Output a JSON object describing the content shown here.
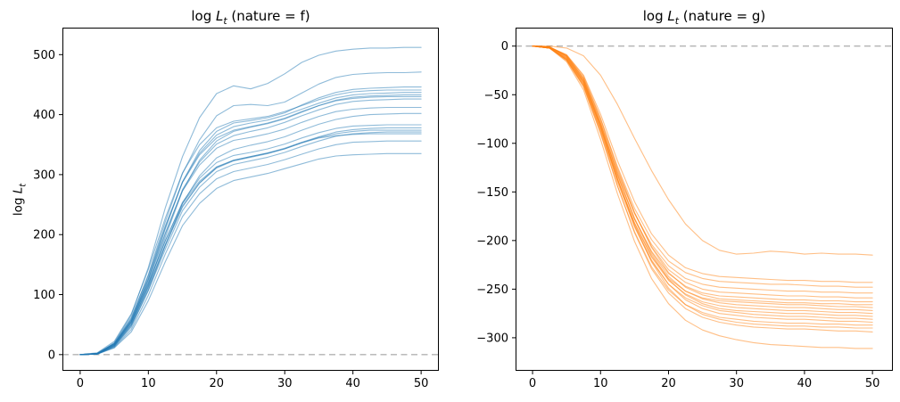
{
  "figure": {
    "background": "#ffffff"
  },
  "chart_data": [
    {
      "type": "line",
      "title": "log L_t (nature = f)",
      "title_parts": {
        "pre": "log ",
        "var": "L",
        "sub": "t",
        "rest": " (nature = f)"
      },
      "ylabel": "log L_t",
      "ylabel_parts": {
        "pre": "log ",
        "var": "L",
        "sub": "t"
      },
      "line_color": "#1f77b4",
      "line_alpha": 0.5,
      "zero_line": {
        "y": 0,
        "color": "#b3b3b3",
        "dash": "7 4.5",
        "width": 1.4
      },
      "grid": false,
      "legend": false,
      "xlim": [
        -2.6,
        52.6
      ],
      "ylim": [
        -27,
        545
      ],
      "xticks": [
        {
          "v": 0,
          "label": "0"
        },
        {
          "v": 10,
          "label": "10"
        },
        {
          "v": 20,
          "label": "20"
        },
        {
          "v": 30,
          "label": "30"
        },
        {
          "v": 40,
          "label": "40"
        },
        {
          "v": 50,
          "label": "50"
        }
      ],
      "yticks": [
        {
          "v": 0,
          "label": "0"
        },
        {
          "v": 100,
          "label": "100"
        },
        {
          "v": 200,
          "label": "200"
        },
        {
          "v": 300,
          "label": "300"
        },
        {
          "v": 400,
          "label": "400"
        },
        {
          "v": 500,
          "label": "500"
        }
      ],
      "x": [
        0,
        2.5,
        5,
        7.5,
        10,
        12.5,
        15,
        17.5,
        20,
        22.5,
        25,
        27.5,
        30,
        32.5,
        35,
        37.5,
        40,
        42.5,
        45,
        47.5,
        50
      ],
      "series": [
        [
          0,
          1,
          20,
          66,
          145,
          245,
          330,
          395,
          435,
          448,
          443,
          452,
          468,
          487,
          499,
          506,
          509,
          511,
          511,
          512,
          512
        ],
        [
          0,
          2,
          18,
          60,
          133,
          222,
          302,
          358,
          398,
          415,
          417,
          415,
          421,
          436,
          451,
          462,
          467,
          469,
          470,
          470,
          471
        ],
        [
          0,
          1,
          15,
          55,
          125,
          210,
          288,
          340,
          372,
          386,
          390,
          395,
          403,
          416,
          428,
          437,
          442,
          444,
          445,
          446,
          446
        ],
        [
          0,
          3,
          22,
          68,
          142,
          228,
          303,
          350,
          378,
          389,
          393,
          397,
          405,
          415,
          425,
          433,
          438,
          440,
          441,
          441,
          441
        ],
        [
          0,
          2,
          17,
          58,
          128,
          212,
          288,
          336,
          366,
          380,
          386,
          391,
          399,
          409,
          419,
          428,
          433,
          435,
          436,
          437,
          437
        ],
        [
          0,
          1,
          14,
          50,
          115,
          196,
          273,
          324,
          356,
          372,
          379,
          385,
          393,
          404,
          415,
          424,
          429,
          431,
          432,
          433,
          433
        ],
        [
          0,
          2,
          19,
          62,
          132,
          215,
          287,
          333,
          361,
          374,
          380,
          386,
          394,
          405,
          415,
          423,
          427,
          429,
          430,
          430,
          430
        ],
        [
          0,
          1,
          16,
          54,
          121,
          201,
          275,
          321,
          351,
          365,
          372,
          378,
          387,
          398,
          408,
          417,
          422,
          424,
          425,
          426,
          426
        ],
        [
          0,
          2,
          18,
          58,
          125,
          203,
          273,
          316,
          344,
          357,
          362,
          368,
          376,
          387,
          397,
          405,
          409,
          411,
          412,
          412,
          412
        ],
        [
          0,
          1,
          13,
          46,
          107,
          182,
          252,
          298,
          328,
          342,
          349,
          355,
          363,
          374,
          384,
          392,
          397,
          400,
          401,
          402,
          402
        ],
        [
          0,
          2,
          17,
          54,
          117,
          190,
          254,
          294,
          320,
          332,
          337,
          343,
          351,
          361,
          370,
          377,
          381,
          382,
          383,
          383,
          383
        ],
        [
          0,
          1,
          15,
          50,
          111,
          182,
          246,
          286,
          312,
          324,
          330,
          336,
          344,
          354,
          363,
          371,
          375,
          377,
          378,
          378,
          378
        ],
        [
          0,
          2,
          16,
          52,
          113,
          184,
          248,
          286,
          311,
          323,
          329,
          335,
          343,
          353,
          362,
          368,
          372,
          374,
          374,
          374,
          374
        ],
        [
          0,
          1,
          14,
          48,
          107,
          176,
          240,
          279,
          305,
          317,
          323,
          329,
          337,
          347,
          356,
          364,
          368,
          370,
          371,
          371,
          371
        ],
        [
          0,
          2,
          18,
          56,
          119,
          190,
          252,
          289,
          313,
          324,
          330,
          336,
          343,
          353,
          361,
          365,
          367,
          368,
          368,
          368,
          368
        ],
        [
          0,
          1,
          12,
          42,
          99,
          168,
          230,
          268,
          293,
          305,
          311,
          317,
          325,
          334,
          343,
          350,
          354,
          355,
          356,
          356,
          356
        ],
        [
          0,
          1,
          11,
          38,
          90,
          155,
          215,
          252,
          277,
          290,
          296,
          302,
          310,
          318,
          326,
          331,
          333,
          334,
          335,
          335,
          335
        ]
      ]
    },
    {
      "type": "line",
      "title": "log L_t (nature = g)",
      "title_parts": {
        "pre": "log ",
        "var": "L",
        "sub": "t",
        "rest": " (nature = g)"
      },
      "ylabel": "",
      "line_color": "#ff7f0e",
      "line_alpha": 0.5,
      "zero_line": {
        "y": 0,
        "color": "#b3b3b3",
        "dash": "7 4.5",
        "width": 1.4
      },
      "grid": false,
      "legend": false,
      "xlim": [
        -2.5,
        53
      ],
      "ylim": [
        -334,
        19
      ],
      "xticks": [
        {
          "v": 0,
          "label": "0"
        },
        {
          "v": 10,
          "label": "10"
        },
        {
          "v": 20,
          "label": "20"
        },
        {
          "v": 30,
          "label": "30"
        },
        {
          "v": 40,
          "label": "40"
        },
        {
          "v": 50,
          "label": "50"
        }
      ],
      "yticks": [
        {
          "v": 0,
          "label": "0"
        },
        {
          "v": -50,
          "label": "−50"
        },
        {
          "v": -100,
          "label": "−100"
        },
        {
          "v": -150,
          "label": "−150"
        },
        {
          "v": -200,
          "label": "−200"
        },
        {
          "v": -250,
          "label": "−250"
        },
        {
          "v": -300,
          "label": "−300"
        }
      ],
      "x": [
        0,
        2.5,
        5,
        7.5,
        10,
        12.5,
        15,
        17.5,
        20,
        22.5,
        25,
        27.5,
        30,
        32.5,
        35,
        37.5,
        40,
        42.5,
        45,
        47.5,
        50
      ],
      "series": [
        [
          0,
          0,
          -2,
          -10,
          -30,
          -60,
          -95,
          -128,
          -158,
          -183,
          -200,
          -210,
          -214,
          -213,
          -211,
          -212,
          -214,
          -213,
          -214,
          -214,
          -215
        ],
        [
          0,
          -1,
          -9,
          -30,
          -70,
          -118,
          -160,
          -193,
          -215,
          -228,
          -234,
          -237,
          -238,
          -239,
          -240,
          -241,
          -241,
          -242,
          -242,
          -243,
          -243
        ],
        [
          0,
          -1,
          -10,
          -33,
          -75,
          -124,
          -167,
          -199,
          -221,
          -233,
          -239,
          -242,
          -243,
          -244,
          -245,
          -245,
          -246,
          -247,
          -247,
          -248,
          -248
        ],
        [
          0,
          -2,
          -12,
          -36,
          -80,
          -130,
          -172,
          -204,
          -226,
          -239,
          -245,
          -248,
          -249,
          -250,
          -251,
          -252,
          -252,
          -253,
          -253,
          -254,
          -254
        ],
        [
          0,
          -1,
          -10,
          -33,
          -77,
          -128,
          -172,
          -206,
          -230,
          -243,
          -250,
          -253,
          -254,
          -255,
          -256,
          -257,
          -257,
          -258,
          -258,
          -259,
          -259
        ],
        [
          0,
          -2,
          -13,
          -38,
          -83,
          -134,
          -178,
          -211,
          -234,
          -247,
          -254,
          -257,
          -258,
          -259,
          -260,
          -261,
          -261,
          -262,
          -262,
          -263,
          -263
        ],
        [
          0,
          -1,
          -9,
          -31,
          -74,
          -126,
          -171,
          -207,
          -233,
          -248,
          -256,
          -260,
          -261,
          -262,
          -263,
          -264,
          -264,
          -265,
          -265,
          -266,
          -266
        ],
        [
          0,
          -2,
          -14,
          -40,
          -86,
          -138,
          -182,
          -216,
          -239,
          -252,
          -259,
          -262,
          -263,
          -264,
          -265,
          -266,
          -266,
          -267,
          -268,
          -268,
          -269
        ],
        [
          0,
          -1,
          -11,
          -35,
          -80,
          -132,
          -177,
          -212,
          -237,
          -252,
          -260,
          -264,
          -266,
          -267,
          -268,
          -269,
          -269,
          -270,
          -271,
          -271,
          -272
        ],
        [
          0,
          -2,
          -13,
          -38,
          -84,
          -137,
          -182,
          -217,
          -241,
          -255,
          -263,
          -267,
          -269,
          -270,
          -271,
          -272,
          -272,
          -273,
          -274,
          -274,
          -275
        ],
        [
          0,
          -1,
          -10,
          -34,
          -79,
          -132,
          -178,
          -214,
          -240,
          -256,
          -265,
          -270,
          -272,
          -273,
          -274,
          -275,
          -275,
          -276,
          -277,
          -277,
          -278
        ],
        [
          0,
          -2,
          -14,
          -40,
          -87,
          -140,
          -186,
          -221,
          -245,
          -259,
          -267,
          -272,
          -274,
          -276,
          -277,
          -278,
          -278,
          -279,
          -280,
          -280,
          -281
        ],
        [
          0,
          -1,
          -12,
          -37,
          -83,
          -137,
          -184,
          -220,
          -245,
          -261,
          -270,
          -275,
          -277,
          -279,
          -280,
          -281,
          -281,
          -282,
          -283,
          -283,
          -284
        ],
        [
          0,
          -2,
          -15,
          -42,
          -90,
          -144,
          -191,
          -227,
          -251,
          -266,
          -274,
          -279,
          -281,
          -283,
          -284,
          -285,
          -285,
          -286,
          -286,
          -287,
          -287
        ],
        [
          0,
          -1,
          -11,
          -36,
          -82,
          -137,
          -185,
          -222,
          -249,
          -266,
          -276,
          -281,
          -284,
          -286,
          -287,
          -288,
          -288,
          -289,
          -289,
          -290,
          -290
        ],
        [
          0,
          -2,
          -14,
          -41,
          -89,
          -144,
          -192,
          -229,
          -254,
          -270,
          -279,
          -284,
          -287,
          -289,
          -290,
          -291,
          -291,
          -292,
          -293,
          -293,
          -294
        ],
        [
          0,
          -2,
          -16,
          -45,
          -96,
          -152,
          -201,
          -239,
          -265,
          -282,
          -292,
          -298,
          -302,
          -305,
          -307,
          -308,
          -309,
          -310,
          -310,
          -311,
          -311
        ]
      ]
    }
  ]
}
